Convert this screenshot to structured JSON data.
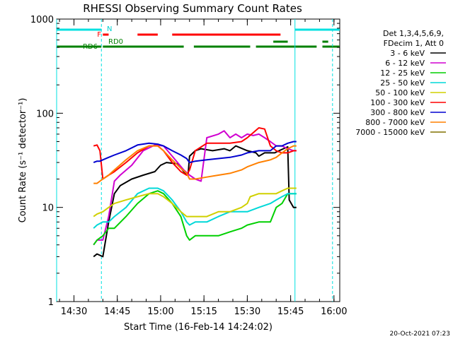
{
  "chart_data": {
    "type": "line",
    "title": "RHESSI Observing Summary Count Rates",
    "xlabel": "Start Time (16-Feb-14 14:24:02)",
    "ylabel": "Count Rate (s⁻¹ detector⁻¹)",
    "y_scale": "log",
    "x_unit": "minutes since 14:24:02",
    "xlim": [
      0,
      98
    ],
    "ylim": [
      1,
      1000
    ],
    "x_ticks": [
      {
        "x": 6,
        "label": "14:30"
      },
      {
        "x": 21,
        "label": "14:45"
      },
      {
        "x": 36,
        "label": "15:00"
      },
      {
        "x": 51,
        "label": "15:15"
      },
      {
        "x": 66,
        "label": "15:30"
      },
      {
        "x": 81,
        "label": "15:45"
      },
      {
        "x": 96,
        "label": "16:00"
      }
    ],
    "y_ticks": [
      {
        "y": 1,
        "label": "1"
      },
      {
        "y": 10,
        "label": "10"
      },
      {
        "y": 100,
        "label": "100"
      },
      {
        "y": 1000,
        "label": "1000"
      }
    ],
    "legend_header": [
      "Det 1,3,4,5,6,9,",
      "FDecim 1, Att 0"
    ],
    "legend_position": "right-outside",
    "series": [
      {
        "name": "3 - 6 keV",
        "color": "#000000",
        "x": [
          12.8,
          14,
          16,
          18,
          20,
          22,
          26,
          30,
          34,
          36,
          38,
          42,
          44,
          45.5,
          46,
          48,
          50,
          54,
          58,
          60,
          62,
          66,
          69,
          70,
          72,
          75.5,
          77,
          80,
          80.5,
          82,
          83
        ],
        "y": [
          3,
          3.2,
          3,
          7,
          14,
          17,
          20,
          22,
          24,
          28,
          30,
          29,
          24,
          22,
          35,
          40,
          42,
          40,
          42,
          40,
          45,
          40,
          38,
          35,
          38,
          38,
          40,
          44,
          12,
          10,
          10
        ]
      },
      {
        "name": "6 - 12 keV",
        "color": "#d000d0",
        "x": [
          12.8,
          14,
          16,
          18,
          20,
          22,
          26,
          30,
          34,
          37,
          40,
          44,
          46,
          48,
          50,
          52,
          56,
          58,
          60,
          62,
          64,
          66,
          68,
          70,
          72,
          74,
          76,
          78,
          80,
          82,
          83
        ],
        "y": [
          4,
          4.5,
          4.5,
          8,
          19,
          22,
          28,
          40,
          46,
          45,
          35,
          25,
          22,
          20,
          19,
          55,
          60,
          65,
          55,
          60,
          55,
          60,
          58,
          60,
          55,
          50,
          45,
          45,
          42,
          40,
          40
        ]
      },
      {
        "name": "12 - 25 keV",
        "color": "#00d000",
        "x": [
          12.8,
          14,
          16,
          18,
          20,
          24,
          28,
          32,
          35,
          37,
          40,
          43,
          45,
          46,
          48,
          52,
          56,
          60,
          64,
          66,
          70,
          74,
          76,
          78,
          80,
          82,
          83
        ],
        "y": [
          4,
          4.5,
          5,
          6,
          6,
          8,
          11,
          14,
          15,
          14,
          11,
          8,
          5,
          4.5,
          5,
          5,
          5,
          5.5,
          6,
          6.5,
          7,
          7,
          10,
          11,
          14,
          14,
          14
        ]
      },
      {
        "name": "25 - 50 keV",
        "color": "#00d8d8",
        "x": [
          12.8,
          14,
          16,
          18,
          20,
          24,
          28,
          32,
          35,
          37,
          40,
          43,
          45,
          46,
          48,
          52,
          56,
          60,
          64,
          66,
          70,
          74,
          76,
          78,
          80,
          82,
          83
        ],
        "y": [
          6,
          6.5,
          7,
          7,
          8,
          10,
          14,
          16,
          16,
          15,
          12,
          9,
          7,
          6.5,
          7,
          7,
          8,
          9,
          9,
          9,
          10,
          11,
          12,
          13,
          14,
          14,
          14
        ]
      },
      {
        "name": "50 - 100 keV",
        "color": "#d0d000",
        "x": [
          12.8,
          14,
          16,
          18,
          20,
          24,
          28,
          32,
          35,
          37,
          40,
          43,
          45,
          46,
          48,
          52,
          56,
          60,
          64,
          66,
          67,
          70,
          74,
          76,
          78,
          80,
          82,
          83
        ],
        "y": [
          8,
          8.5,
          9,
          10,
          11,
          12,
          13,
          14,
          14,
          13,
          11,
          9,
          8,
          8,
          8,
          8,
          9,
          9,
          10,
          11,
          13,
          14,
          14,
          14,
          15,
          16,
          16,
          16
        ]
      },
      {
        "name": "100 - 300 keV",
        "color": "#ff0000",
        "x": [
          12.8,
          14,
          15,
          16,
          18,
          20,
          24,
          28,
          32,
          35,
          37,
          40,
          43,
          45,
          46,
          48,
          52,
          56,
          60,
          64,
          66,
          68,
          70,
          72,
          74,
          76,
          78,
          80,
          82,
          83
        ],
        "y": [
          45,
          46,
          40,
          20,
          22,
          24,
          30,
          38,
          45,
          45,
          40,
          30,
          24,
          22,
          25,
          40,
          48,
          48,
          48,
          50,
          55,
          62,
          70,
          68,
          45,
          40,
          38,
          38,
          40,
          40
        ]
      },
      {
        "name": "300 - 800 keV",
        "color": "#0000d0",
        "x": [
          12.8,
          14,
          15,
          16,
          18,
          20,
          24,
          28,
          32,
          35,
          37,
          40,
          43,
          45,
          46,
          48,
          52,
          56,
          60,
          64,
          66,
          70,
          74,
          76,
          78,
          80,
          82,
          83
        ],
        "y": [
          30,
          31,
          31,
          32,
          34,
          36,
          40,
          46,
          48,
          47,
          45,
          40,
          36,
          33,
          30,
          31,
          32,
          33,
          34,
          36,
          38,
          40,
          40,
          45,
          45,
          48,
          50,
          50
        ]
      },
      {
        "name": "800 - 7000 keV",
        "color": "#ff8000",
        "x": [
          12.8,
          14,
          15,
          16,
          18,
          20,
          24,
          28,
          32,
          35,
          37,
          40,
          43,
          45,
          46,
          48,
          52,
          56,
          60,
          64,
          66,
          70,
          74,
          76,
          78,
          80,
          82,
          83
        ],
        "y": [
          18,
          18,
          19,
          20,
          22,
          25,
          32,
          40,
          45,
          45,
          40,
          32,
          26,
          23,
          20,
          20,
          21,
          22,
          23,
          25,
          27,
          30,
          32,
          34,
          38,
          42,
          45,
          45
        ]
      },
      {
        "name": "7000 - 15000 keV",
        "color": "#807000",
        "x": [],
        "y": []
      }
    ],
    "state_bars": [
      {
        "label": "N",
        "color": "#00e0e0",
        "segments": [
          [
            0,
            15.5
          ],
          [
            82.5,
            98
          ]
        ]
      },
      {
        "label": "F",
        "color": "#ff0000",
        "segments": [
          [
            16,
            18
          ],
          [
            28,
            35
          ],
          [
            40,
            77.5
          ]
        ]
      },
      {
        "label": "RD0",
        "color": "#008000",
        "segments": [
          [
            75,
            80
          ],
          [
            92,
            94
          ]
        ]
      },
      {
        "label": "RD6",
        "color": "#008000",
        "segments": [
          [
            0,
            15.5
          ],
          [
            16,
            44
          ],
          [
            47.5,
            67
          ],
          [
            69,
            90
          ],
          [
            92,
            98
          ]
        ]
      }
    ],
    "vertical_lines": [
      {
        "x": 0,
        "color": "#00e0e0",
        "style": "solid"
      },
      {
        "x": 15.5,
        "color": "#00e0e0",
        "style": "dashed"
      },
      {
        "x": 82.5,
        "color": "#00e0e0",
        "style": "solid"
      },
      {
        "x": 95.5,
        "color": "#00e0e0",
        "style": "dashed"
      }
    ],
    "footer_date": "20-Oct-2021 07:23"
  }
}
